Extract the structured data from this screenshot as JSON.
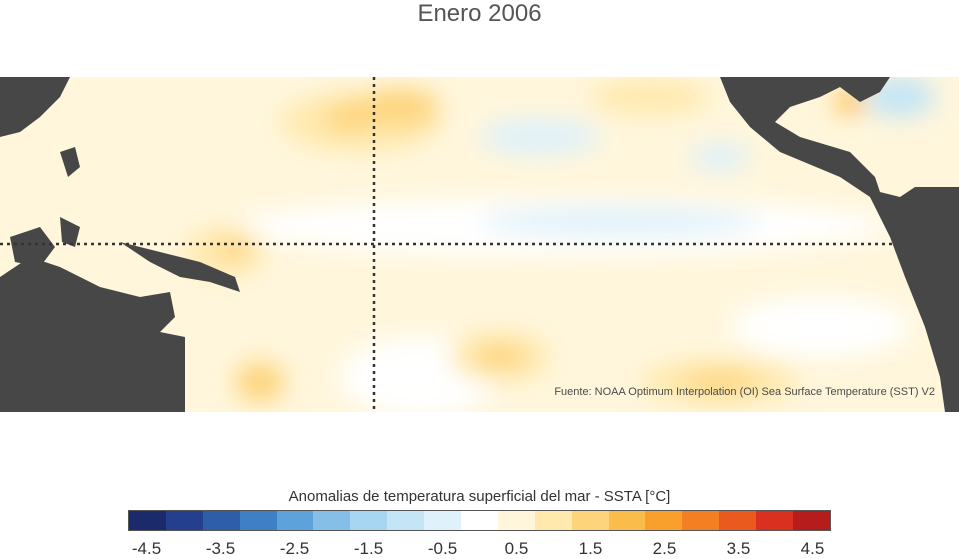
{
  "title": "Enero 2006",
  "source": "Fuente: NOAA Optimum Interpolation (OI) Sea Surface Temperature (SST) V2",
  "colorbar": {
    "title": "Anomalias de temperatura superficial del mar - SSTA  [°C]",
    "colors": [
      "#1b2a6b",
      "#243f8e",
      "#2f5ea8",
      "#3f7fc3",
      "#5da2db",
      "#85bfe8",
      "#a6d6f2",
      "#c3e5f6",
      "#dff1fa",
      "#ffffff",
      "#fff6dc",
      "#ffe9ad",
      "#fdd47c",
      "#fbbd4a",
      "#f9a02c",
      "#f47f22",
      "#ea5a1f",
      "#d9301f",
      "#b71c1c"
    ],
    "ticks": [
      "-4.5",
      "-3.5",
      "-2.5",
      "-1.5",
      "-0.5",
      "0.5",
      "1.5",
      "2.5",
      "3.5",
      "4.5"
    ]
  }
}
